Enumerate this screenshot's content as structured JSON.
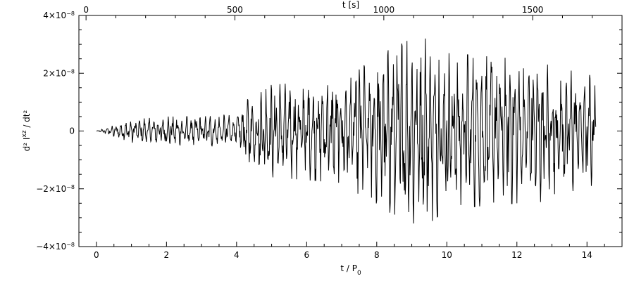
{
  "chart_data": {
    "type": "line",
    "xlabel": "t / P",
    "xlabel_sub": "0",
    "top_xlabel": "t [s]",
    "ylabel": "d² I",
    "ylabel_sup": "xz",
    "ylabel_tail": " / dt²",
    "xlim": [
      -0.5,
      15.0
    ],
    "ylim": [
      -4e-08,
      4e-08
    ],
    "top_xlim": [
      -24,
      1800
    ],
    "x_ticks": [
      0,
      2,
      4,
      6,
      8,
      10,
      12,
      14
    ],
    "x_tick_labels": [
      "0",
      "2",
      "4",
      "6",
      "8",
      "10",
      "12",
      "14"
    ],
    "top_x_ticks": [
      0,
      500,
      1000,
      1500
    ],
    "top_x_tick_labels": [
      "0",
      "500",
      "1000",
      "1500"
    ],
    "y_ticks": [
      -4e-08,
      -2e-08,
      0,
      2e-08,
      4e-08
    ],
    "y_tick_labels": [
      {
        "base": "−4×10",
        "exp": "−8"
      },
      {
        "base": "−2×10",
        "exp": "−8"
      },
      {
        "base": "0",
        "exp": ""
      },
      {
        "base": "2×10",
        "exp": "−8"
      },
      {
        "base": "4×10",
        "exp": "−8"
      }
    ],
    "grid": false,
    "series": [
      {
        "x_range": [
          0.0,
          14.25
        ],
        "n_points": 1140,
        "envelope_t": [
          0.0,
          0.5,
          1.0,
          2.0,
          3.0,
          4.0,
          4.5,
          5.0,
          6.0,
          7.0,
          8.0,
          9.0,
          9.5,
          10.0,
          11.0,
          12.0,
          12.5,
          13.0,
          14.0,
          14.25
        ],
        "envelope_amp": [
          0.0,
          2e-09,
          4e-09,
          5e-09,
          5e-09,
          6e-09,
          1.4e-08,
          1.6e-08,
          1.7e-08,
          1.8e-08,
          2.6e-08,
          3.2e-08,
          3.2e-08,
          2.7e-08,
          2.6e-08,
          2.5e-08,
          2.6e-08,
          2.2e-08,
          2e-08,
          1.8e-08
        ]
      }
    ]
  }
}
